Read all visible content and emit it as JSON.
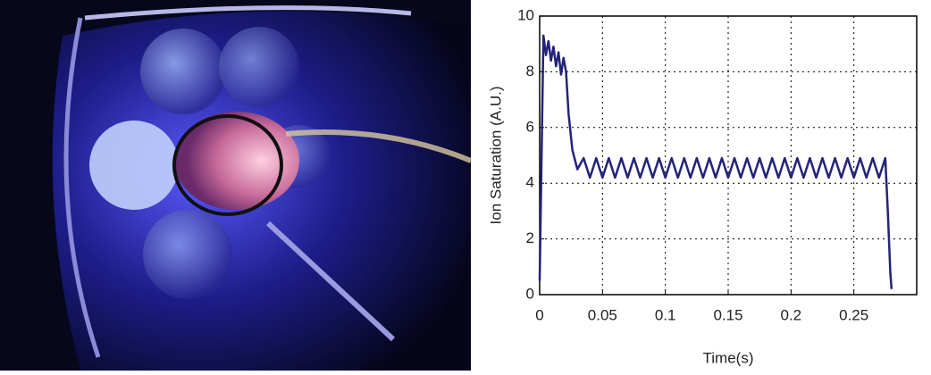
{
  "chart_data": {
    "type": "line",
    "x_label": "Time(s)",
    "y_label": "Ion Saturation (A.U.)",
    "x": [
      0,
      0.003,
      0.005,
      0.007,
      0.009,
      0.011,
      0.013,
      0.015,
      0.017,
      0.019,
      0.021,
      0.023,
      0.026,
      0.03,
      0.035,
      0.04,
      0.045,
      0.05,
      0.055,
      0.06,
      0.065,
      0.07,
      0.075,
      0.08,
      0.085,
      0.09,
      0.095,
      0.1,
      0.105,
      0.11,
      0.115,
      0.12,
      0.125,
      0.13,
      0.135,
      0.14,
      0.145,
      0.15,
      0.155,
      0.16,
      0.165,
      0.17,
      0.175,
      0.18,
      0.185,
      0.19,
      0.195,
      0.2,
      0.205,
      0.21,
      0.215,
      0.22,
      0.225,
      0.23,
      0.235,
      0.24,
      0.245,
      0.25,
      0.255,
      0.26,
      0.265,
      0.27,
      0.275,
      0.277,
      0.279,
      0.28
    ],
    "values": [
      0.5,
      9.3,
      8.6,
      9.1,
      8.4,
      8.9,
      8.2,
      8.7,
      7.9,
      8.5,
      8.0,
      6.5,
      5.2,
      4.5,
      4.9,
      4.2,
      4.9,
      4.2,
      4.9,
      4.2,
      4.9,
      4.2,
      4.9,
      4.2,
      4.9,
      4.2,
      4.9,
      4.2,
      4.9,
      4.2,
      4.9,
      4.2,
      4.9,
      4.2,
      4.9,
      4.2,
      4.9,
      4.2,
      4.9,
      4.2,
      4.9,
      4.2,
      4.9,
      4.2,
      4.9,
      4.2,
      4.9,
      4.2,
      4.9,
      4.2,
      4.9,
      4.2,
      4.9,
      4.2,
      4.9,
      4.2,
      4.9,
      4.2,
      4.9,
      4.2,
      4.9,
      4.2,
      4.9,
      3.0,
      0.8,
      0.2
    ],
    "color": "#23237a",
    "xlim": [
      0,
      0.3
    ],
    "xticks": [
      0,
      0.05,
      0.1,
      0.15,
      0.2,
      0.25
    ],
    "ylim": [
      0,
      10
    ],
    "yticks": [
      0,
      2,
      4,
      6,
      8,
      10
    ],
    "grid": true
  }
}
